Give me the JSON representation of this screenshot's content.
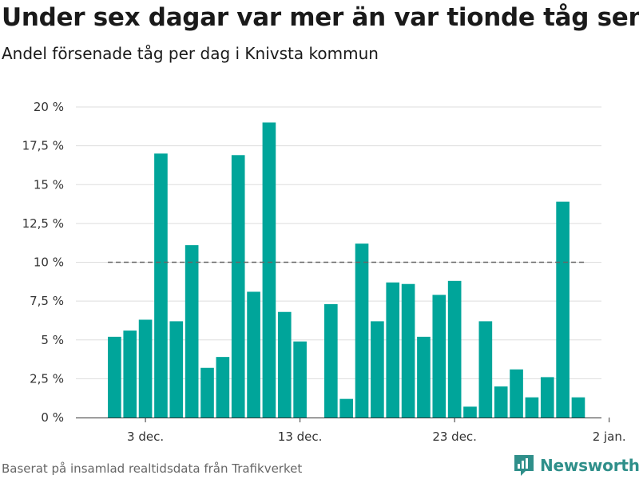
{
  "header": {
    "title": "Under sex dagar var mer än var tionde tåg sent",
    "subtitle": "Andel försenade tåg per dag i Knivsta kommun"
  },
  "footer": {
    "source": "Baserat på insamlad realtidsdata från Trafikverket",
    "brand": "Newsworthy"
  },
  "colors": {
    "bar": "#00a59a",
    "reference_line": "#666666",
    "grid": "#dddddd",
    "brand": "#2f8f8a"
  },
  "chart_data": {
    "type": "bar",
    "title": "Under sex dagar var mer än var tionde tåg sent",
    "subtitle": "Andel försenade tåg per dag i Knivsta kommun",
    "xlabel": "",
    "ylabel": "",
    "x_start_day": 1,
    "x_range_days": [
      -1.5,
      32.5
    ],
    "x_ticks": [
      {
        "day": 3,
        "label": "3 dec."
      },
      {
        "day": 13,
        "label": "13 dec."
      },
      {
        "day": 23,
        "label": "23 dec."
      },
      {
        "day": 33,
        "label": "2 jan."
      }
    ],
    "ylim": [
      0,
      20
    ],
    "y_ticks": [
      {
        "value": 0,
        "label": "0 %"
      },
      {
        "value": 2.5,
        "label": "2,5 %"
      },
      {
        "value": 5,
        "label": "5 %"
      },
      {
        "value": 7.5,
        "label": "7,5 %"
      },
      {
        "value": 10,
        "label": "10 %"
      },
      {
        "value": 12.5,
        "label": "12,5 %"
      },
      {
        "value": 15,
        "label": "15 %"
      },
      {
        "value": 17.5,
        "label": "17,5 %"
      },
      {
        "value": 20,
        "label": "20 %"
      }
    ],
    "reference_line": {
      "value": 10,
      "style": "dashed"
    },
    "grid": true,
    "legend": "none",
    "series": [
      {
        "values": [
          5.2,
          5.6,
          6.3,
          17.0,
          6.2,
          11.1,
          3.2,
          3.9,
          16.9,
          8.1,
          19.0,
          6.8,
          4.9,
          null,
          7.3,
          1.2,
          11.2,
          6.2,
          8.7,
          8.6,
          5.2,
          7.9,
          8.8,
          0.7,
          6.2,
          2.0,
          3.1,
          1.3,
          2.6,
          13.9,
          1.3
        ]
      }
    ]
  }
}
